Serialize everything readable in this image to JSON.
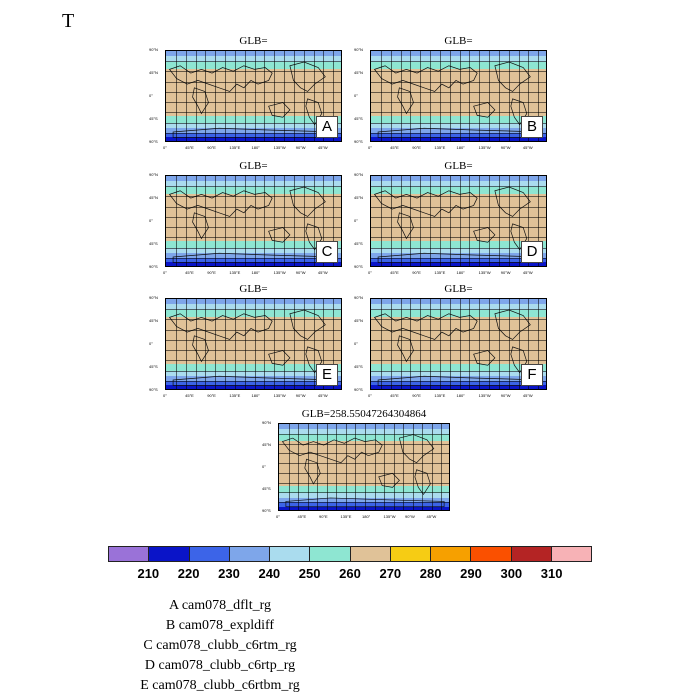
{
  "page_title": "T",
  "panels": [
    {
      "letter": "A",
      "title": "GLB="
    },
    {
      "letter": "B",
      "title": "GLB="
    },
    {
      "letter": "C",
      "title": "GLB="
    },
    {
      "letter": "D",
      "title": "GLB="
    },
    {
      "letter": "E",
      "title": "GLB="
    },
    {
      "letter": "F",
      "title": "GLB="
    },
    {
      "letter": "",
      "title": "GLB=258.55047264304864"
    }
  ],
  "lat_ticks": [
    "90°N",
    "45°N",
    "0°",
    "45°S",
    "90°S"
  ],
  "lon_ticks": [
    "0°",
    "45°E",
    "90°E",
    "135°E",
    "180°",
    "135°W",
    "90°W",
    "45°W"
  ],
  "colorbar": {
    "colors": [
      "#9a72d8",
      "#0a14c8",
      "#3c64e8",
      "#7ea6ea",
      "#aadcee",
      "#8ee6d2",
      "#e0c298",
      "#f6cc14",
      "#f6a000",
      "#fa5000",
      "#b42424",
      "#f7b2b6"
    ],
    "labels": [
      "210",
      "220",
      "230",
      "240",
      "250",
      "260",
      "270",
      "280",
      "290",
      "300",
      "310"
    ]
  },
  "legend": [
    "A  cam078_dflt_rg",
    "B  cam078_expldiff",
    "C  cam078_clubb_c6rtm_rg",
    "D  cam078_clubb_c6rtp_rg",
    "E  cam078_clubb_c6rtbm_rg"
  ]
}
